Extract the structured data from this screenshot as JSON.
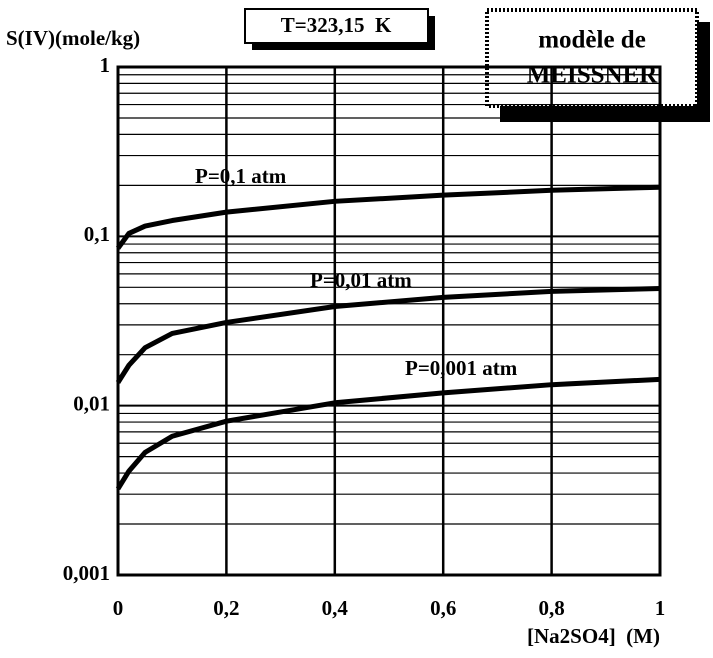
{
  "chart_data": {
    "type": "line",
    "y_label": "S(IV)(mole/kg)",
    "x_label": "[Na2SO4]  (M)",
    "annotations": [
      "T=323,15  K",
      "modèle de",
      "MEISSNER"
    ],
    "x": [
      0,
      0.02,
      0.05,
      0.1,
      0.2,
      0.4,
      0.6,
      0.8,
      1
    ],
    "series": [
      {
        "name": "P=0,1  atm",
        "color": "#000000",
        "values": [
          0.085,
          0.104,
          0.115,
          0.124,
          0.139,
          0.161,
          0.175,
          0.187,
          0.195
        ]
      },
      {
        "name": "P=0,01  atm",
        "color": "#000000",
        "values": [
          0.0137,
          0.0173,
          0.022,
          0.0267,
          0.031,
          0.0385,
          0.0436,
          0.0473,
          0.0492
        ]
      },
      {
        "name": "P=0,001  atm",
        "color": "#000000",
        "values": [
          0.00323,
          0.0041,
          0.0053,
          0.0066,
          0.0081,
          0.0104,
          0.0119,
          0.0133,
          0.0143
        ]
      }
    ],
    "xlim": [
      0,
      1
    ],
    "xticks": [
      0,
      {
        "value": 0.2,
        "label": "0,2"
      },
      {
        "value": 0.4,
        "label": "0,4"
      },
      {
        "value": 0.6,
        "label": "0,6"
      },
      {
        "value": 0.8,
        "label": "0,8"
      },
      1
    ],
    "ylim": [
      0.001,
      1
    ],
    "yticks": [
      {
        "value": 0.001,
        "label": "0,001"
      },
      {
        "value": 0.01,
        "label": "0,01"
      },
      {
        "value": 0.1,
        "label": "0,1"
      },
      1
    ],
    "log_y": true,
    "grid": true,
    "minor_grid": true
  }
}
